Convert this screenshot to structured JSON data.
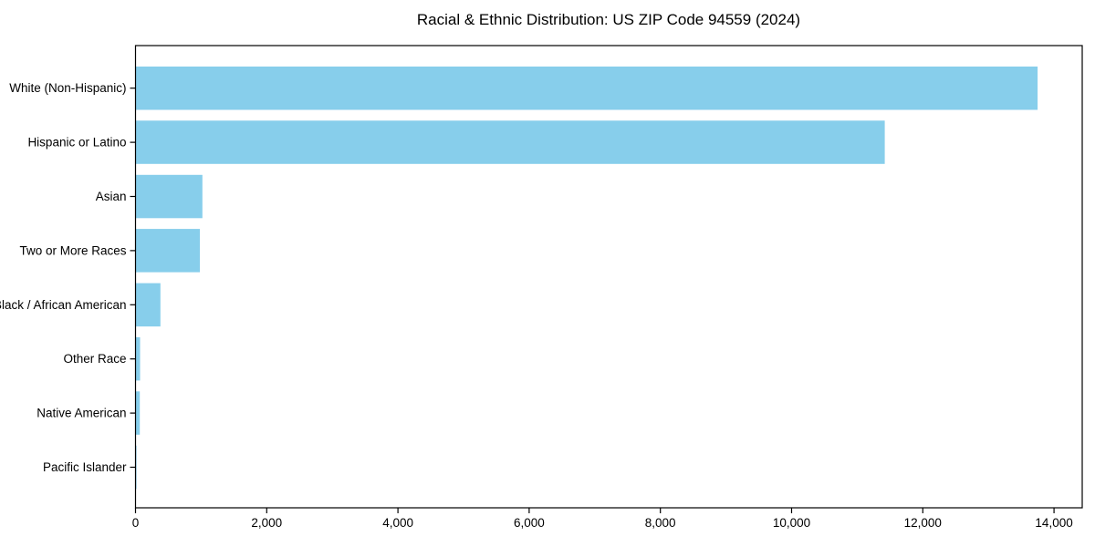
{
  "title": "Racial & Ethnic Distribution: US ZIP Code 94559 (2024)",
  "chart_data": {
    "type": "bar",
    "orientation": "horizontal",
    "title": "Racial & Ethnic Distribution: US ZIP Code 94559 (2024)",
    "categories": [
      "White (Non-Hispanic)",
      "Hispanic or Latino",
      "Asian",
      "Two or More Races",
      "Black / African American",
      "Other Race",
      "Native American",
      "Pacific Islander"
    ],
    "values": [
      13750,
      11420,
      1020,
      980,
      380,
      70,
      65,
      15
    ],
    "xlabel": "",
    "ylabel": "",
    "xlim": [
      0,
      14430
    ],
    "xticks": [
      0,
      2000,
      4000,
      6000,
      8000,
      10000,
      12000,
      14000
    ],
    "xtick_labels": [
      "0",
      "2,000",
      "4,000",
      "6,000",
      "8,000",
      "10,000",
      "12,000",
      "14,000"
    ],
    "bar_color": "#87CEEB",
    "axis_color": "#000000",
    "grid": false,
    "legend": null
  }
}
